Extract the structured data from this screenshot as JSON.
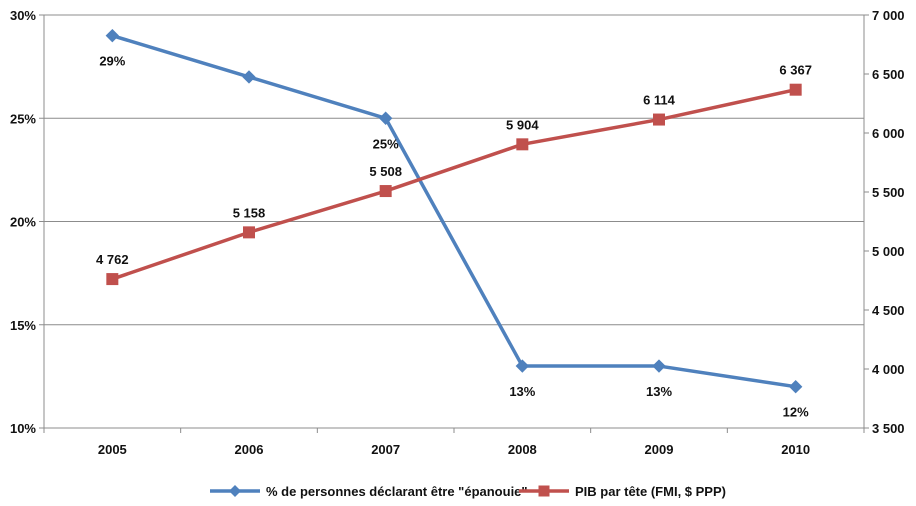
{
  "chart_data": {
    "type": "line",
    "categories": [
      "2005",
      "2006",
      "2007",
      "2008",
      "2009",
      "2010"
    ],
    "series": [
      {
        "name": "% de personnes déclarant être \"épanouie\"",
        "axis": "left",
        "color": "#4F81BD",
        "marker": "diamond",
        "values": [
          29,
          27,
          25,
          13,
          13,
          12
        ],
        "labels": [
          "29%",
          "",
          "25%",
          "13%",
          "13%",
          "12%"
        ]
      },
      {
        "name": "PIB par tête (FMI, $ PPP)",
        "axis": "right",
        "color": "#C0504D",
        "marker": "square",
        "values": [
          4762,
          5158,
          5508,
          5904,
          6114,
          6367
        ],
        "labels": [
          "4 762",
          "5 158",
          "5 508",
          "5 904",
          "6 114",
          "6 367"
        ]
      }
    ],
    "y_left": {
      "min": 10,
      "max": 30,
      "ticks": [
        10,
        15,
        20,
        25,
        30
      ],
      "tick_labels": [
        "10%",
        "15%",
        "20%",
        "25%",
        "30%"
      ]
    },
    "y_right": {
      "min": 3500,
      "max": 7000,
      "ticks": [
        3500,
        4000,
        4500,
        5000,
        5500,
        6000,
        6500,
        7000
      ],
      "tick_labels": [
        "3 500",
        "4 000",
        "4 500",
        "5 000",
        "5 500",
        "6 000",
        "6 500",
        "7 000"
      ]
    },
    "grid": true,
    "legend_position": "bottom",
    "title": "",
    "xlabel": "",
    "ylabel": ""
  }
}
